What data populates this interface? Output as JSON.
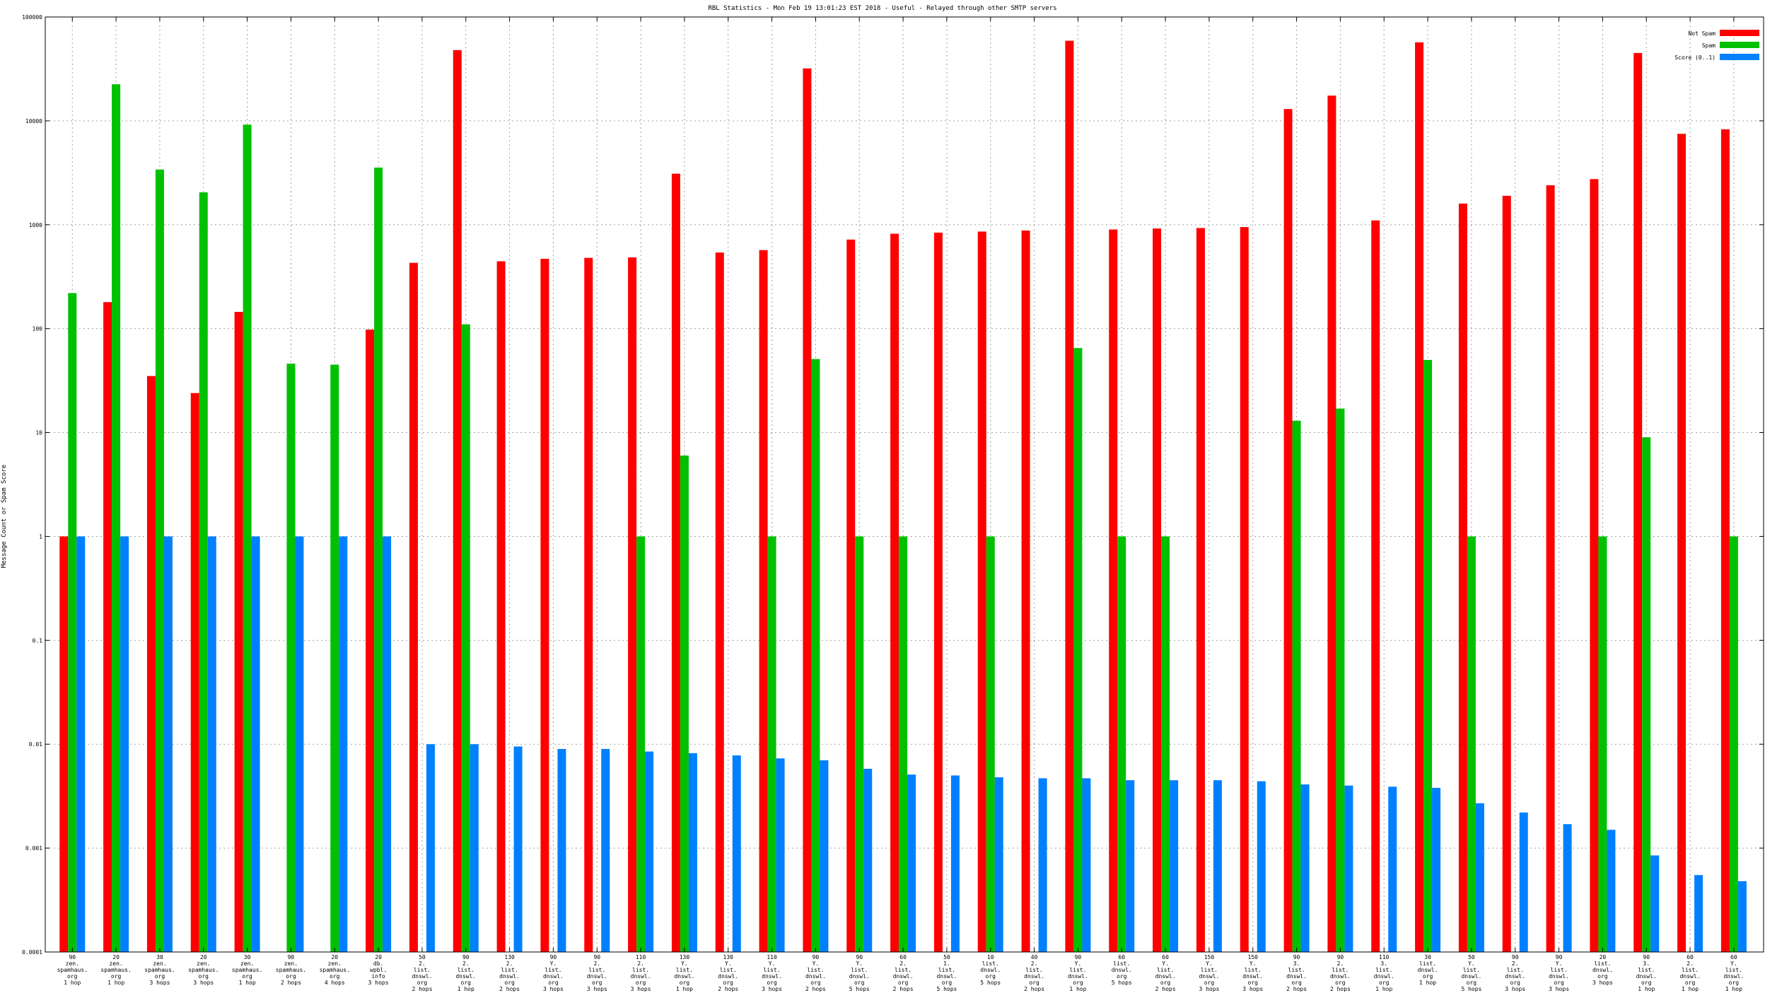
{
  "chart_data": {
    "type": "bar",
    "title": "RBL Statistics - Mon Feb 19 13:01:23 EST 2018 - Useful - Relayed through other SMTP servers",
    "xlabel": "",
    "ylabel": "Message Count or Spam Score",
    "yscale": "log",
    "ylim": [
      0.0001,
      100000
    ],
    "yticks": [
      "0.0001",
      "0.001",
      "0.01",
      "0.1",
      "1",
      "10",
      "100",
      "1000",
      "10000",
      "100000"
    ],
    "grid": true,
    "legend_position": "top-right",
    "categories": [
      [
        "90",
        "zen.",
        "spamhaus.",
        "org",
        "1 hop"
      ],
      [
        "20",
        "zen.",
        "spamhaus.",
        "org",
        "1 hop"
      ],
      [
        "30",
        "zen.",
        "spamhaus.",
        "org",
        "3 hops"
      ],
      [
        "20",
        "zen.",
        "spamhaus.",
        "org",
        "3 hops"
      ],
      [
        "30",
        "zen.",
        "spamhaus.",
        "org",
        "1 hop"
      ],
      [
        "90",
        "zen.",
        "spamhaus.",
        "org",
        "2 hops"
      ],
      [
        "20",
        "zen.",
        "spamhaus.",
        "org",
        "4 hops"
      ],
      [
        "20",
        "db.",
        "wpbl.",
        "info",
        "3 hops"
      ],
      [
        "50",
        "2.",
        "list.",
        "dnswl.",
        "org",
        "2 hops"
      ],
      [
        "90",
        "2.",
        "list.",
        "dnswl.",
        "org",
        "1 hop"
      ],
      [
        "130",
        "2.",
        "list.",
        "dnswl.",
        "org",
        "2 hops"
      ],
      [
        "90",
        "Y.",
        "list.",
        "dnswl.",
        "org",
        "3 hops"
      ],
      [
        "90",
        "2.",
        "list.",
        "dnswl.",
        "org",
        "3 hops"
      ],
      [
        "110",
        "2.",
        "list.",
        "dnswl.",
        "org",
        "3 hops"
      ],
      [
        "130",
        "Y.",
        "list.",
        "dnswl.",
        "org",
        "1 hop"
      ],
      [
        "130",
        "Y.",
        "list.",
        "dnswl.",
        "org",
        "2 hops"
      ],
      [
        "110",
        "Y.",
        "list.",
        "dnswl.",
        "org",
        "3 hops"
      ],
      [
        "90",
        "Y.",
        "list.",
        "dnswl.",
        "org",
        "2 hops"
      ],
      [
        "90",
        "Y.",
        "list.",
        "dnswl.",
        "org",
        "5 hops"
      ],
      [
        "60",
        "2.",
        "list.",
        "dnswl.",
        "org",
        "2 hops"
      ],
      [
        "50",
        "1.",
        "list.",
        "dnswl.",
        "org",
        "5 hops"
      ],
      [
        "10",
        "list.",
        "dnswl.",
        "org",
        "5 hops"
      ],
      [
        "40",
        "2.",
        "list.",
        "dnswl.",
        "org",
        "2 hops"
      ],
      [
        "90",
        "Y.",
        "list.",
        "dnswl.",
        "org",
        "1 hop"
      ],
      [
        "60",
        "list.",
        "dnswl.",
        "org",
        "5 hops"
      ],
      [
        "60",
        "Y.",
        "list.",
        "dnswl.",
        "org",
        "2 hops"
      ],
      [
        "150",
        "Y.",
        "list.",
        "dnswl.",
        "org",
        "3 hops"
      ],
      [
        "150",
        "Y.",
        "list.",
        "dnswl.",
        "org",
        "3 hops"
      ],
      [
        "90",
        "3.",
        "list.",
        "dnswl.",
        "org",
        "2 hops"
      ],
      [
        "90",
        "2.",
        "list.",
        "dnswl.",
        "org",
        "2 hops"
      ],
      [
        "110",
        "3.",
        "list.",
        "dnswl.",
        "org",
        "1 hop"
      ],
      [
        "30",
        "list.",
        "dnswl.",
        "org",
        "1 hop"
      ],
      [
        "50",
        "Y.",
        "list.",
        "dnswl.",
        "org",
        "5 hops"
      ],
      [
        "90",
        "2.",
        "list.",
        "dnswl.",
        "org",
        "3 hops"
      ],
      [
        "90",
        "Y.",
        "list.",
        "dnswl.",
        "org",
        "3 hops"
      ],
      [
        "20",
        "list.",
        "dnswl.",
        "org",
        "3 hops"
      ],
      [
        "90",
        "3.",
        "list.",
        "dnswl.",
        "org",
        "1 hop"
      ],
      [
        "60",
        "2.",
        "list.",
        "dnswl.",
        "org",
        "1 hop"
      ],
      [
        "60",
        "Y.",
        "list.",
        "dnswl.",
        "org",
        "1 hop"
      ]
    ],
    "series": [
      {
        "name": "Not Spam",
        "color": "#ff0000",
        "values": [
          1,
          180,
          35,
          24,
          145,
          null,
          null,
          98,
          430,
          48000,
          445,
          470,
          480,
          485,
          3100,
          540,
          570,
          32000,
          720,
          820,
          840,
          860,
          880,
          59000,
          900,
          920,
          930,
          950,
          13000,
          17500,
          1100,
          57000,
          1600,
          1900,
          2400,
          2750,
          45000,
          7500,
          8300
        ]
      },
      {
        "name": "Spam",
        "color": "#00c000",
        "values": [
          220,
          22500,
          3400,
          2050,
          9200,
          46,
          45,
          3550,
          null,
          110,
          null,
          null,
          null,
          1,
          6,
          null,
          1,
          51,
          1,
          1,
          null,
          1,
          null,
          65,
          1,
          1,
          null,
          null,
          13,
          17,
          null,
          50,
          1,
          null,
          null,
          1,
          9,
          null,
          1
        ]
      },
      {
        "name": "Score (0..1)",
        "color": "#0080ff",
        "values": [
          1,
          1,
          1,
          1,
          1,
          1,
          1,
          1,
          0.01,
          0.01,
          0.0095,
          0.009,
          0.009,
          0.0085,
          0.0082,
          0.0078,
          0.0073,
          0.007,
          0.0058,
          0.0051,
          0.005,
          0.0048,
          0.0047,
          0.0047,
          0.0045,
          0.0045,
          0.0045,
          0.0044,
          0.0041,
          0.004,
          0.0039,
          0.0038,
          0.0027,
          0.0022,
          0.0017,
          0.0015,
          0.00085,
          0.00055,
          0.00048
        ]
      }
    ]
  }
}
